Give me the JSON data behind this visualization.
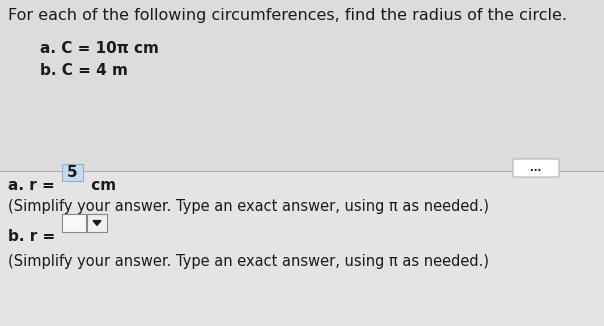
{
  "bg_top": "#dcdcdc",
  "bg_bottom": "#e4e4e4",
  "divider_color": "#b0b0b0",
  "title": "For each of the following circumferences, find the radius of the circle.",
  "item_a": "a. C = 10π cm",
  "item_b": "b. C = 4 m",
  "dots": "...",
  "ans_a_pre": "a. r = ",
  "ans_a_val": "5",
  "ans_a_suf": " cm",
  "simplify": "(Simplify your answer. Type an exact answer, using π as needed.)",
  "ans_b_pre": "b. r = ",
  "box_a_fill": "#c5d9f0",
  "box_b_fill": "#f8f8f8",
  "box_drop_fill": "#f0f0f0",
  "text_color": "#1a1a1a",
  "dots_box_fill": "#ffffff",
  "title_fs": 11.5,
  "body_fs": 11,
  "small_fs": 10.5
}
